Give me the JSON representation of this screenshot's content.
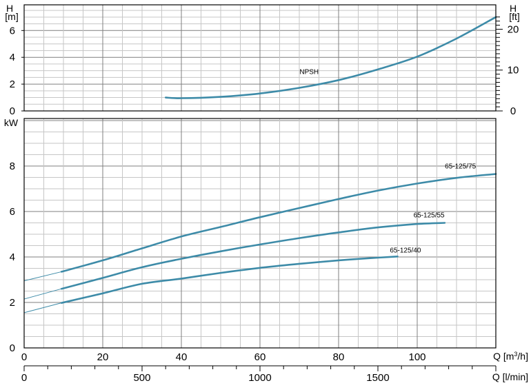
{
  "chart_data": [
    {
      "type": "line",
      "name_key": "npsh",
      "title": "",
      "y_label_top": "H",
      "y_unit": "[m]",
      "y2_label_top": "H",
      "y2_unit": "[ft]",
      "y_ticks": [
        0,
        2,
        4,
        6
      ],
      "y2_ticks": [
        0,
        10,
        20
      ],
      "ylim": [
        0,
        7
      ],
      "y2lim_ft": [
        0,
        22.966
      ],
      "xlim": [
        0,
        120
      ],
      "grid": true,
      "series": [
        {
          "name": "NPSH",
          "x": [
            36,
            40,
            50,
            60,
            70,
            80,
            90,
            100,
            110,
            120
          ],
          "y": [
            1.0,
            0.95,
            1.05,
            1.3,
            1.72,
            2.3,
            3.1,
            4.05,
            5.4,
            7.0
          ]
        }
      ]
    },
    {
      "type": "line",
      "name_key": "power",
      "title": "",
      "ylabel": "kW",
      "y_ticks": [
        0,
        2,
        4,
        6,
        8
      ],
      "ylim": [
        0,
        10
      ],
      "xlim": [
        0,
        120
      ],
      "grid": true,
      "x_axis": {
        "label": "Q [m³/h]",
        "label_q": "Q",
        "label_unit": "[m",
        "label_sup": "3",
        "label_end": "/h]",
        "ticks": [
          0,
          20,
          40,
          60,
          80,
          100
        ]
      },
      "x2_axis": {
        "label": "Q [l/min]",
        "ticks": [
          0,
          500,
          1000,
          1500
        ],
        "lpm_per_m3h": 16.667
      },
      "series": [
        {
          "name": "65-125/75",
          "x": [
            0,
            9.5,
            20,
            30,
            40,
            50,
            60,
            70,
            80,
            90,
            100,
            110,
            120
          ],
          "y": [
            2.95,
            3.35,
            3.85,
            4.38,
            4.9,
            5.32,
            5.75,
            6.15,
            6.55,
            6.92,
            7.23,
            7.48,
            7.65
          ]
        },
        {
          "name": "65-125/55",
          "x": [
            0,
            9.5,
            20,
            30,
            40,
            50,
            60,
            70,
            80,
            90,
            100,
            107
          ],
          "y": [
            2.15,
            2.6,
            3.08,
            3.55,
            3.92,
            4.25,
            4.55,
            4.83,
            5.08,
            5.3,
            5.45,
            5.5
          ]
        },
        {
          "name": "65-125/40",
          "x": [
            0,
            9.5,
            20,
            30,
            40,
            50,
            60,
            70,
            80,
            90,
            95
          ],
          "y": [
            1.55,
            1.98,
            2.4,
            2.82,
            3.05,
            3.3,
            3.52,
            3.7,
            3.85,
            3.97,
            4.02
          ]
        }
      ]
    }
  ],
  "style": {
    "curve_color": "#3d8ba8",
    "grid_major_color": "#7f7f7f",
    "grid_minor_color": "#c6c6c6",
    "frame_color": "#000000"
  }
}
